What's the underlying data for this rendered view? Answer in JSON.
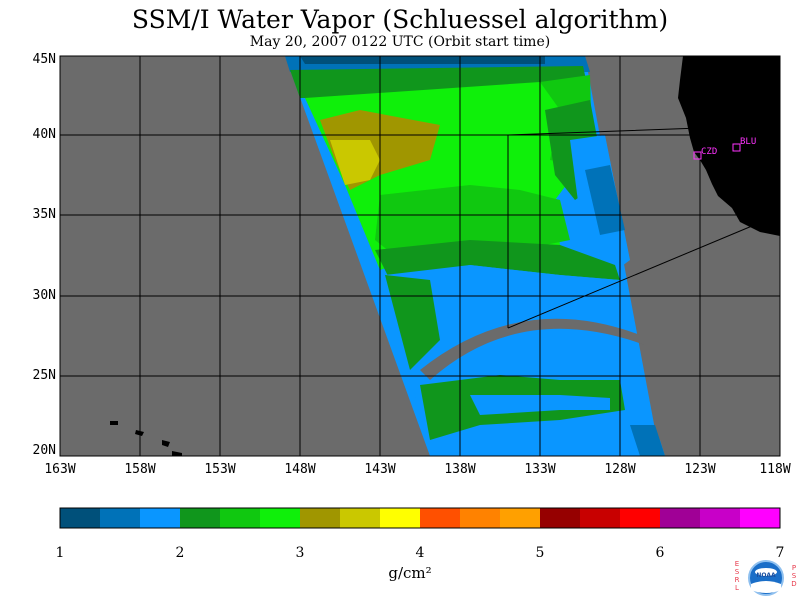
{
  "title": "SSM/I Water Vapor (Schluessel algorithm)",
  "subtitle": "May 20, 2007  0122 UTC  (Orbit start time)",
  "lat_labels": [
    "45N",
    "40N",
    "35N",
    "30N",
    "25N",
    "20N"
  ],
  "lon_labels": [
    "163W",
    "158W",
    "153W",
    "148W",
    "143W",
    "138W",
    "133W",
    "128W",
    "123W",
    "118W"
  ],
  "stations": [
    {
      "label": "CZD",
      "color": "#ff33ff"
    },
    {
      "label": "BLU",
      "color": "#ff33ff"
    }
  ],
  "colorbar": {
    "ticks": [
      "1",
      "2",
      "3",
      "4",
      "5",
      "6",
      "7"
    ],
    "units": "g/cm²",
    "colors": [
      "#00507a",
      "#0072b8",
      "#0a96ff",
      "#10961c",
      "#10c810",
      "#0ff00a",
      "#a09600",
      "#cac800",
      "#ffff00",
      "#ff5000",
      "#ff8200",
      "#ffa000",
      "#960000",
      "#c80000",
      "#ff0000",
      "#a00096",
      "#c800c8",
      "#ff00ff"
    ]
  },
  "map_colors": {
    "background": "#6b6b6b",
    "land": "#000000",
    "grid": "#000000"
  },
  "logo": {
    "left_text": "ESRL",
    "right_text": "PSD",
    "center_text": "NOAA"
  }
}
